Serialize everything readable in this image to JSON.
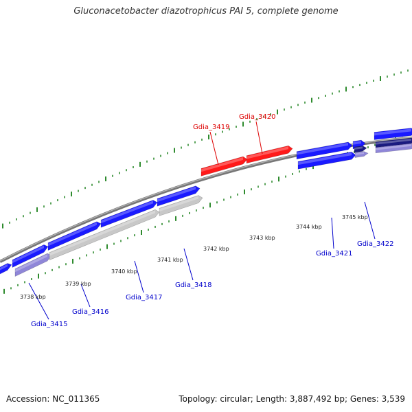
{
  "title": "Gluconacetobacter diazotrophicus PAI 5, complete genome",
  "footer": {
    "accession": "Accession: NC_011365",
    "summary": "Topology: circular; Length: 3,887,492 bp; Genes: 3,539"
  },
  "colors": {
    "highlight_gene": "#ff1a1a",
    "gene_blue": "#1a1aff",
    "gene_gray": "#c8c8c8",
    "gene_lavender": "#8f86d8",
    "gene_navy": "#1a1a80",
    "tick_green": "#2e8b2e",
    "genome_line": "#888888",
    "label_blue": "#0000cc",
    "label_red": "#dd0000"
  },
  "kbp_labels": [
    {
      "text": "3738 kbp"
    },
    {
      "text": "3739 kbp"
    },
    {
      "text": "3740 kbp"
    },
    {
      "text": "3741 kbp"
    },
    {
      "text": "3742 kbp"
    },
    {
      "text": "3743 kbp"
    },
    {
      "text": "3744 kbp"
    },
    {
      "text": "3745 kbp"
    }
  ],
  "gene_labels": [
    {
      "text": "Gdia_3415",
      "highlight": false
    },
    {
      "text": "Gdia_3416",
      "highlight": false
    },
    {
      "text": "Gdia_3417",
      "highlight": false
    },
    {
      "text": "Gdia_3418",
      "highlight": false
    },
    {
      "text": "Gdia_3419",
      "highlight": true
    },
    {
      "text": "Gdia_3420",
      "highlight": true
    },
    {
      "text": "Gdia_3421",
      "highlight": false
    },
    {
      "text": "Gdia_3422",
      "highlight": false
    }
  ]
}
